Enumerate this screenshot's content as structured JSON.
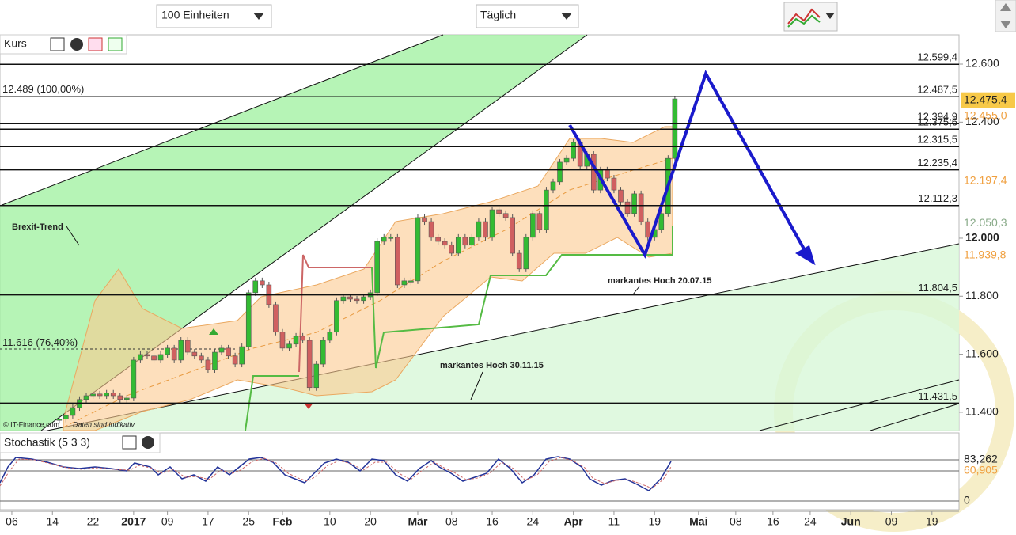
{
  "toolbar": {
    "units": "100 Einheiten",
    "interval": "Täglich"
  },
  "chart_data": {
    "type": "candlestick",
    "panel_title": "Kurs",
    "x": [
      7,
      8,
      9,
      10,
      11,
      12,
      13,
      14,
      15,
      16,
      17,
      18,
      19,
      20,
      21,
      22,
      23,
      24,
      25,
      26,
      27,
      28,
      29,
      30,
      31,
      32,
      33,
      34,
      35,
      36,
      37,
      38,
      39,
      40,
      41,
      42,
      43,
      44,
      45,
      46,
      47,
      48,
      49,
      50,
      51,
      52,
      53,
      54,
      55,
      56,
      57,
      58,
      59,
      60,
      61,
      62,
      63,
      64,
      65,
      66,
      67,
      68,
      69,
      70,
      71,
      72,
      73,
      74,
      75,
      76,
      77,
      78,
      79,
      80,
      81,
      82,
      83,
      84,
      85,
      86,
      87,
      88,
      89,
      90,
      91,
      92,
      93,
      94,
      95,
      96,
      97,
      98
    ],
    "close": [
      11376,
      11389,
      11416,
      11444,
      11457,
      11463,
      11457,
      11466,
      11457,
      11444,
      11449,
      11580,
      11599,
      11594,
      11580,
      11599,
      11621,
      11580,
      11648,
      11607,
      11594,
      11580,
      11547,
      11607,
      11621,
      11594,
      11566,
      11626,
      11812,
      11853,
      11839,
      11771,
      11676,
      11621,
      11635,
      11662,
      11648,
      11485,
      11566,
      11648,
      11676,
      11785,
      11798,
      11790,
      11785,
      11798,
      11812,
      11989,
      12003,
      12003,
      11839,
      11853,
      11853,
      12071,
      12057,
      12003,
      11989,
      11976,
      11948,
      12003,
      11976,
      12003,
      12057,
      12003,
      12098,
      12085,
      12071,
      11948,
      11894,
      12003,
      12085,
      12030,
      12166,
      12194,
      12262,
      12275,
      12330,
      12248,
      12289,
      12166,
      12235,
      12207,
      12166,
      12125,
      12085,
      12153,
      12057,
      12003,
      12030,
      12085,
      12275,
      12480
    ],
    "up_color": "#33bb33",
    "down_color": "#d06060",
    "xlim": [
      -1.75,
      140
    ],
    "ylim": [
      11337,
      12701
    ],
    "xticks": [
      {
        "value": 0,
        "label": "06"
      },
      {
        "value": 6,
        "label": "14"
      },
      {
        "value": 12,
        "label": "22"
      },
      {
        "value": 18,
        "label": "2017",
        "bold": true
      },
      {
        "value": 23,
        "label": "09"
      },
      {
        "value": 29,
        "label": "17"
      },
      {
        "value": 35,
        "label": "25"
      },
      {
        "value": 40,
        "label": "Feb",
        "bold": true
      },
      {
        "value": 47,
        "label": "10"
      },
      {
        "value": 53,
        "label": "20"
      },
      {
        "value": 60,
        "label": "Mär",
        "bold": true
      },
      {
        "value": 65,
        "label": "08"
      },
      {
        "value": 71,
        "label": "16"
      },
      {
        "value": 77,
        "label": "24"
      },
      {
        "value": 83,
        "label": "Apr",
        "bold": true
      },
      {
        "value": 89,
        "label": "11"
      },
      {
        "value": 95,
        "label": "19"
      },
      {
        "value": 101.5,
        "label": "Mai",
        "bold": true
      },
      {
        "value": 107,
        "label": "08"
      },
      {
        "value": 112.5,
        "label": "16"
      },
      {
        "value": 118,
        "label": "24"
      },
      {
        "value": 124,
        "label": "Jun",
        "bold": true
      },
      {
        "value": 130,
        "label": "09"
      },
      {
        "value": 136,
        "label": "19"
      }
    ],
    "yticks": [
      {
        "value": 11400,
        "label": "11.400"
      },
      {
        "value": 11600,
        "label": "11.600"
      },
      {
        "value": 11800,
        "label": "11.800"
      },
      {
        "value": 12000,
        "label": "12.000",
        "bold": true
      },
      {
        "value": 12400,
        "label": "12.400"
      },
      {
        "value": 12600,
        "label": "12.600"
      }
    ],
    "levels": [
      {
        "value": 12599.4,
        "label": "12.599,4"
      },
      {
        "value": 12487.5,
        "label": "12.487,5"
      },
      {
        "value": 12394.9,
        "label": "12.394,9"
      },
      {
        "value": 12375.6,
        "label": "12.375,6"
      },
      {
        "value": 12315.5,
        "label": "12.315,5"
      },
      {
        "value": 12235.4,
        "label": "12.235,4"
      },
      {
        "value": 12112.3,
        "label": "12.112,3"
      },
      {
        "value": 11804.5,
        "label": "11.804,5"
      },
      {
        "value": 11431.5,
        "label": "11.431,5"
      }
    ],
    "fib_levels": [
      {
        "value": 12489,
        "label": "12.489 (100,00%)"
      },
      {
        "value": 11616,
        "label": "11.616 (76,40%)",
        "dashed": true
      }
    ],
    "price_tags": [
      {
        "value": 12475.4,
        "label": "12.475,4",
        "color": "#222222",
        "background": "#f7c948"
      },
      {
        "value": 12455.0,
        "label": "12.455,0",
        "color": "#f0a040"
      },
      {
        "value": 12197.4,
        "label": "12.197,4",
        "color": "#f0a040"
      },
      {
        "value": 12050.3,
        "label": "12.050,3",
        "color": "#88aa88"
      },
      {
        "value": 11939.8,
        "label": "11.939,8",
        "color": "#f0a040"
      }
    ],
    "annotations": [
      "Brexit-Trend",
      "markantes Hoch 20.07.15",
      "markantes Hoch 30.11.15"
    ],
    "copyright": "© IT-Finance.com",
    "disclaimer": "Daten sind indikativ",
    "stochastic": {
      "title": "Stochastik (5 3 3)",
      "ylim": [
        -17.6,
        137.7
      ],
      "yticks": [
        {
          "value": 83.262,
          "label": "83,262",
          "color": "#222222"
        },
        {
          "value": 60.905,
          "label": "60,905",
          "color": "#f0a040"
        },
        0
      ]
    }
  }
}
